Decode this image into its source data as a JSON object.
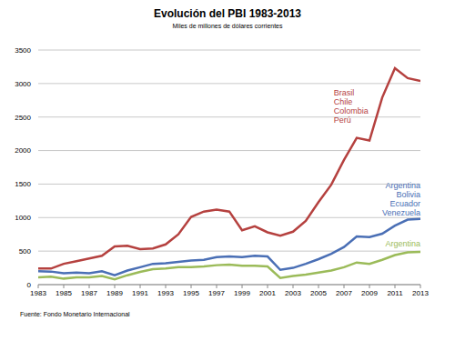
{
  "chart_data": {
    "type": "line",
    "title": "Evolución del PBI 1983-2013",
    "subtitle": "Miles de millones de dólares corrientes",
    "source": "Fuente: Fondo Monetario Internacional",
    "x": [
      1983,
      1984,
      1985,
      1986,
      1987,
      1988,
      1989,
      1990,
      1991,
      1992,
      1993,
      1994,
      1995,
      1996,
      1997,
      1998,
      1999,
      2000,
      2001,
      2002,
      2003,
      2004,
      2005,
      2006,
      2007,
      2008,
      2009,
      2010,
      2011,
      2012,
      2013
    ],
    "xlim": [
      1983,
      2013
    ],
    "xticks": [
      1983,
      1985,
      1987,
      1989,
      1991,
      1993,
      1995,
      1997,
      1999,
      2001,
      2003,
      2005,
      2007,
      2009,
      2011,
      2013
    ],
    "ylim": [
      0,
      3500
    ],
    "yticks": [
      0,
      500,
      1000,
      1500,
      2000,
      2500,
      3000,
      3500
    ],
    "grid": true,
    "series": [
      {
        "name": "Brasil\nChile\nColombia\nPerú",
        "color": "#b5413f",
        "values": [
          240,
          240,
          310,
          350,
          390,
          430,
          570,
          580,
          530,
          540,
          600,
          750,
          1010,
          1090,
          1120,
          1090,
          810,
          870,
          780,
          730,
          790,
          950,
          1230,
          1490,
          1860,
          2190,
          2150,
          2790,
          3230,
          3080,
          3040
        ]
      },
      {
        "name": "Argentina\nBolivia\nEcuador\nVenezuela",
        "color": "#4a6fb5",
        "values": [
          200,
          195,
          170,
          180,
          170,
          200,
          140,
          210,
          260,
          310,
          320,
          340,
          360,
          370,
          410,
          420,
          410,
          430,
          420,
          220,
          250,
          310,
          380,
          460,
          560,
          720,
          710,
          760,
          880,
          970,
          980
        ]
      },
      {
        "name": "Argentina",
        "color": "#9bbb59",
        "values": [
          110,
          120,
          90,
          110,
          110,
          130,
          80,
          140,
          190,
          230,
          240,
          260,
          260,
          270,
          290,
          300,
          280,
          280,
          270,
          100,
          130,
          150,
          180,
          210,
          260,
          330,
          310,
          370,
          440,
          480,
          490
        ]
      }
    ]
  }
}
